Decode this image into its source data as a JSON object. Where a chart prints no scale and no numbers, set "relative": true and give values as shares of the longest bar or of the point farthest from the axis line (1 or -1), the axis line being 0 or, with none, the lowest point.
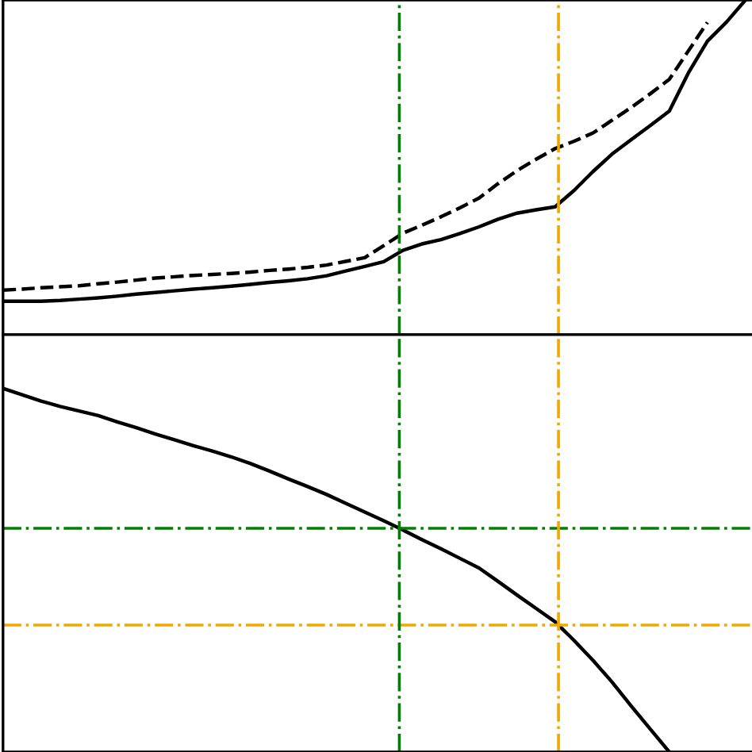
{
  "chart_data": [
    {
      "type": "line",
      "relative": true,
      "categories": [
        null,
        null,
        null,
        null,
        null,
        null,
        null,
        null,
        null,
        null,
        null,
        null,
        null,
        null,
        null,
        null,
        null,
        null,
        null,
        null,
        null,
        null,
        null,
        null,
        null,
        null,
        null,
        null,
        null,
        null,
        null,
        null,
        null,
        null,
        null,
        null,
        null,
        null,
        null,
        null
      ],
      "series": [
        {
          "color": "#000000",
          "line_style": "solid",
          "values": [
            0.1,
            0.1,
            0.1,
            0.102,
            0.106,
            0.11,
            0.115,
            0.121,
            0.126,
            0.131,
            0.136,
            0.14,
            0.145,
            0.15,
            0.156,
            0.161,
            0.167,
            0.176,
            0.19,
            0.204,
            0.218,
            0.252,
            0.271,
            0.284,
            0.302,
            0.322,
            0.345,
            0.363,
            0.373,
            0.382,
            0.431,
            0.488,
            0.54,
            0.583,
            0.625,
            0.668,
            0.782,
            0.877,
            0.934,
            1.0
          ]
        },
        {
          "color": "#000000",
          "line_style": "dashed",
          "values": [
            0.133,
            0.136,
            0.14,
            0.143,
            0.146,
            0.152,
            0.157,
            0.163,
            0.169,
            0.173,
            0.177,
            0.18,
            0.183,
            0.187,
            0.192,
            0.196,
            0.201,
            0.208,
            0.219,
            0.23,
            0.266,
            0.303,
            0.327,
            0.352,
            0.379,
            0.408,
            0.451,
            0.49,
            0.524,
            0.556,
            0.578,
            0.603,
            0.641,
            0.679,
            0.72,
            0.763,
            0.848,
            0.933,
            null,
            null
          ]
        }
      ]
    },
    {
      "type": "line",
      "relative": true,
      "categories": [
        null,
        null,
        null,
        null,
        null,
        null,
        null,
        null,
        null,
        null,
        null,
        null,
        null,
        null,
        null,
        null,
        null,
        null,
        null,
        null,
        null,
        null,
        null,
        null,
        null,
        null,
        null,
        null,
        null,
        null,
        null,
        null,
        null,
        null,
        null,
        null,
        null,
        null,
        null,
        null
      ],
      "series": [
        {
          "color": "#000000",
          "line_style": "solid",
          "values": [
            -0.129,
            -0.144,
            -0.159,
            -0.172,
            -0.183,
            -0.194,
            -0.209,
            -0.223,
            -0.238,
            -0.252,
            -0.266,
            -0.279,
            -0.293,
            -0.309,
            -0.327,
            -0.346,
            -0.364,
            -0.383,
            -0.404,
            -0.425,
            -0.446,
            -0.468,
            -0.491,
            -0.513,
            -0.536,
            -0.559,
            -0.591,
            -0.624,
            -0.656,
            -0.688,
            -0.733,
            -0.781,
            -0.833,
            -0.89,
            -0.945,
            -1.0,
            null,
            null,
            null,
            null
          ]
        }
      ],
      "ref_lines": [
        {
          "axis": "y",
          "value": -0.464,
          "color": "#008000",
          "line_style": "dashdot"
        },
        {
          "axis": "y",
          "value": -0.696,
          "color": "#f0a800",
          "line_style": "dashdot"
        }
      ]
    }
  ]
}
